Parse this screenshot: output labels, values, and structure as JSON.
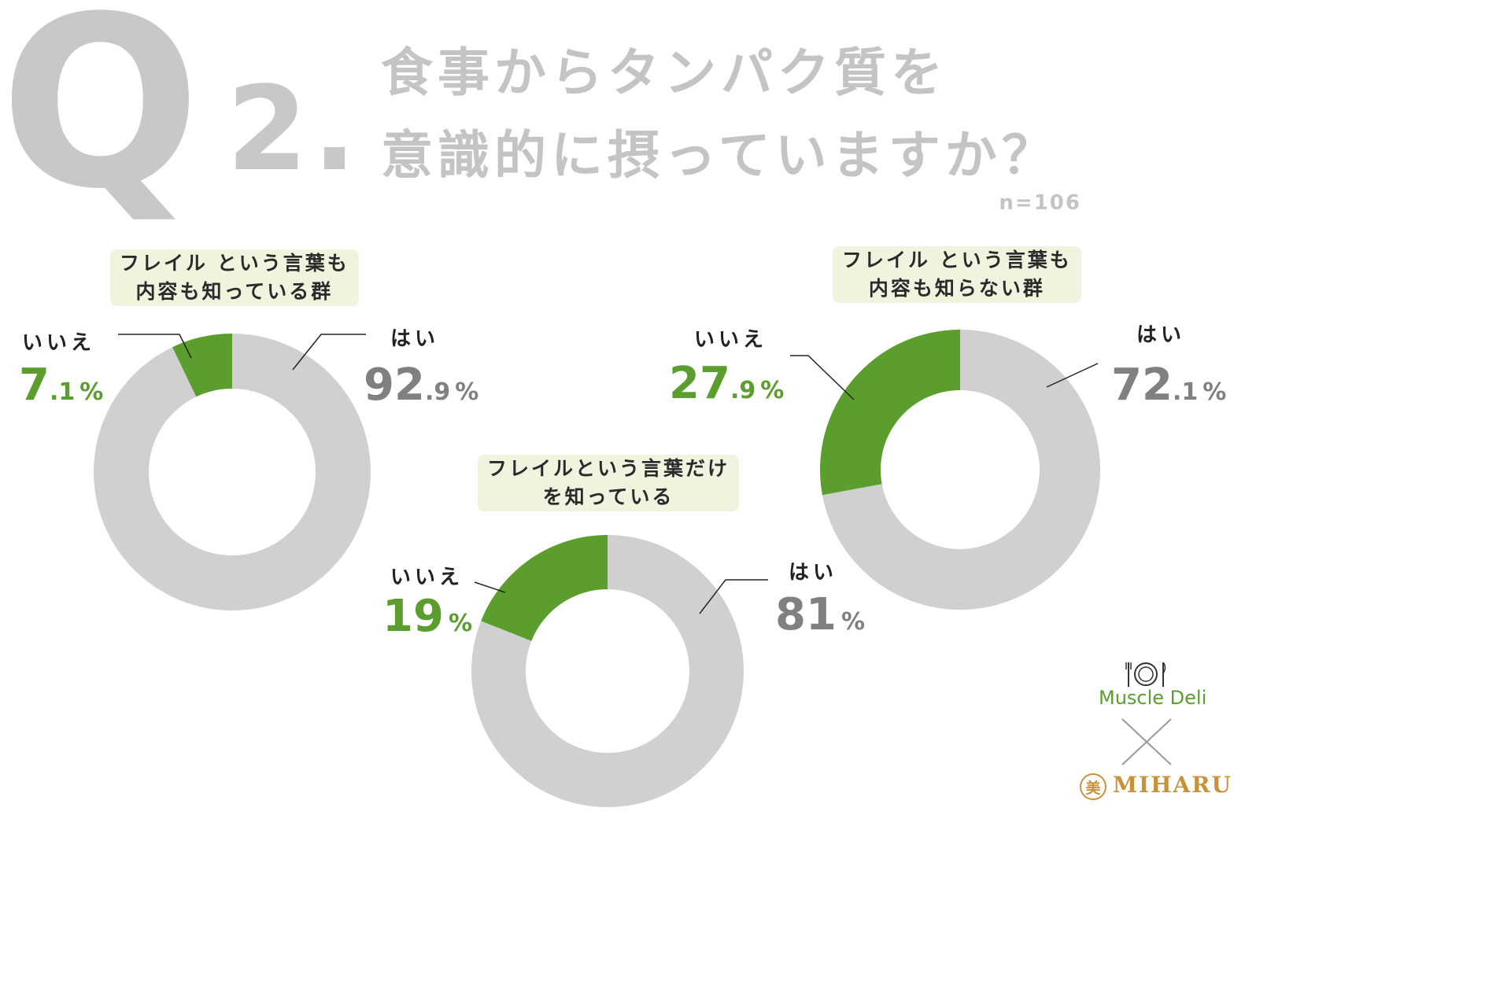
{
  "header": {
    "q_letter": "Q",
    "q_number": "2.",
    "title_line1": "食事からタンパク質を",
    "title_line2": "意識的に摂っていますか？",
    "sample_size": "n=106"
  },
  "colors": {
    "yes": "#d0d0d0",
    "no": "#5b9e2e",
    "yes_text": "#808080",
    "no_text": "#5b9e2e",
    "title": "#c4c4c4",
    "label_bg": "#f1f3df"
  },
  "chart_data": [
    {
      "type": "pie",
      "donut": true,
      "title": "",
      "group_label_lines": [
        "フレイル という言葉も",
        "内容も知っている群"
      ],
      "categories": [
        "はい",
        "いいえ"
      ],
      "values": [
        92.9,
        7.1
      ],
      "display": [
        {
          "label": "はい",
          "int": "92",
          "dec": ".9",
          "sign": "%"
        },
        {
          "label": "いいえ",
          "int": "7",
          "dec": ".1",
          "sign": "%"
        }
      ]
    },
    {
      "type": "pie",
      "donut": true,
      "title": "",
      "group_label_lines": [
        "フレイルという言葉だけ",
        "を知っている"
      ],
      "categories": [
        "はい",
        "いいえ"
      ],
      "values": [
        81,
        19
      ],
      "display": [
        {
          "label": "はい",
          "int": "81",
          "dec": "",
          "sign": "%"
        },
        {
          "label": "いいえ",
          "int": "19",
          "dec": "",
          "sign": "%"
        }
      ]
    },
    {
      "type": "pie",
      "donut": true,
      "title": "",
      "group_label_lines": [
        "フレイル という言葉も",
        "内容も知らない群"
      ],
      "categories": [
        "はい",
        "いいえ"
      ],
      "values": [
        72.1,
        27.9
      ],
      "display": [
        {
          "label": "はい",
          "int": "72",
          "dec": ".1",
          "sign": "%"
        },
        {
          "label": "いいえ",
          "int": "27",
          "dec": ".9",
          "sign": "%"
        }
      ]
    }
  ],
  "logos": {
    "muscle_deli": "Muscle Deli",
    "miharu": "MIHARU",
    "miharu_seal": "美"
  }
}
